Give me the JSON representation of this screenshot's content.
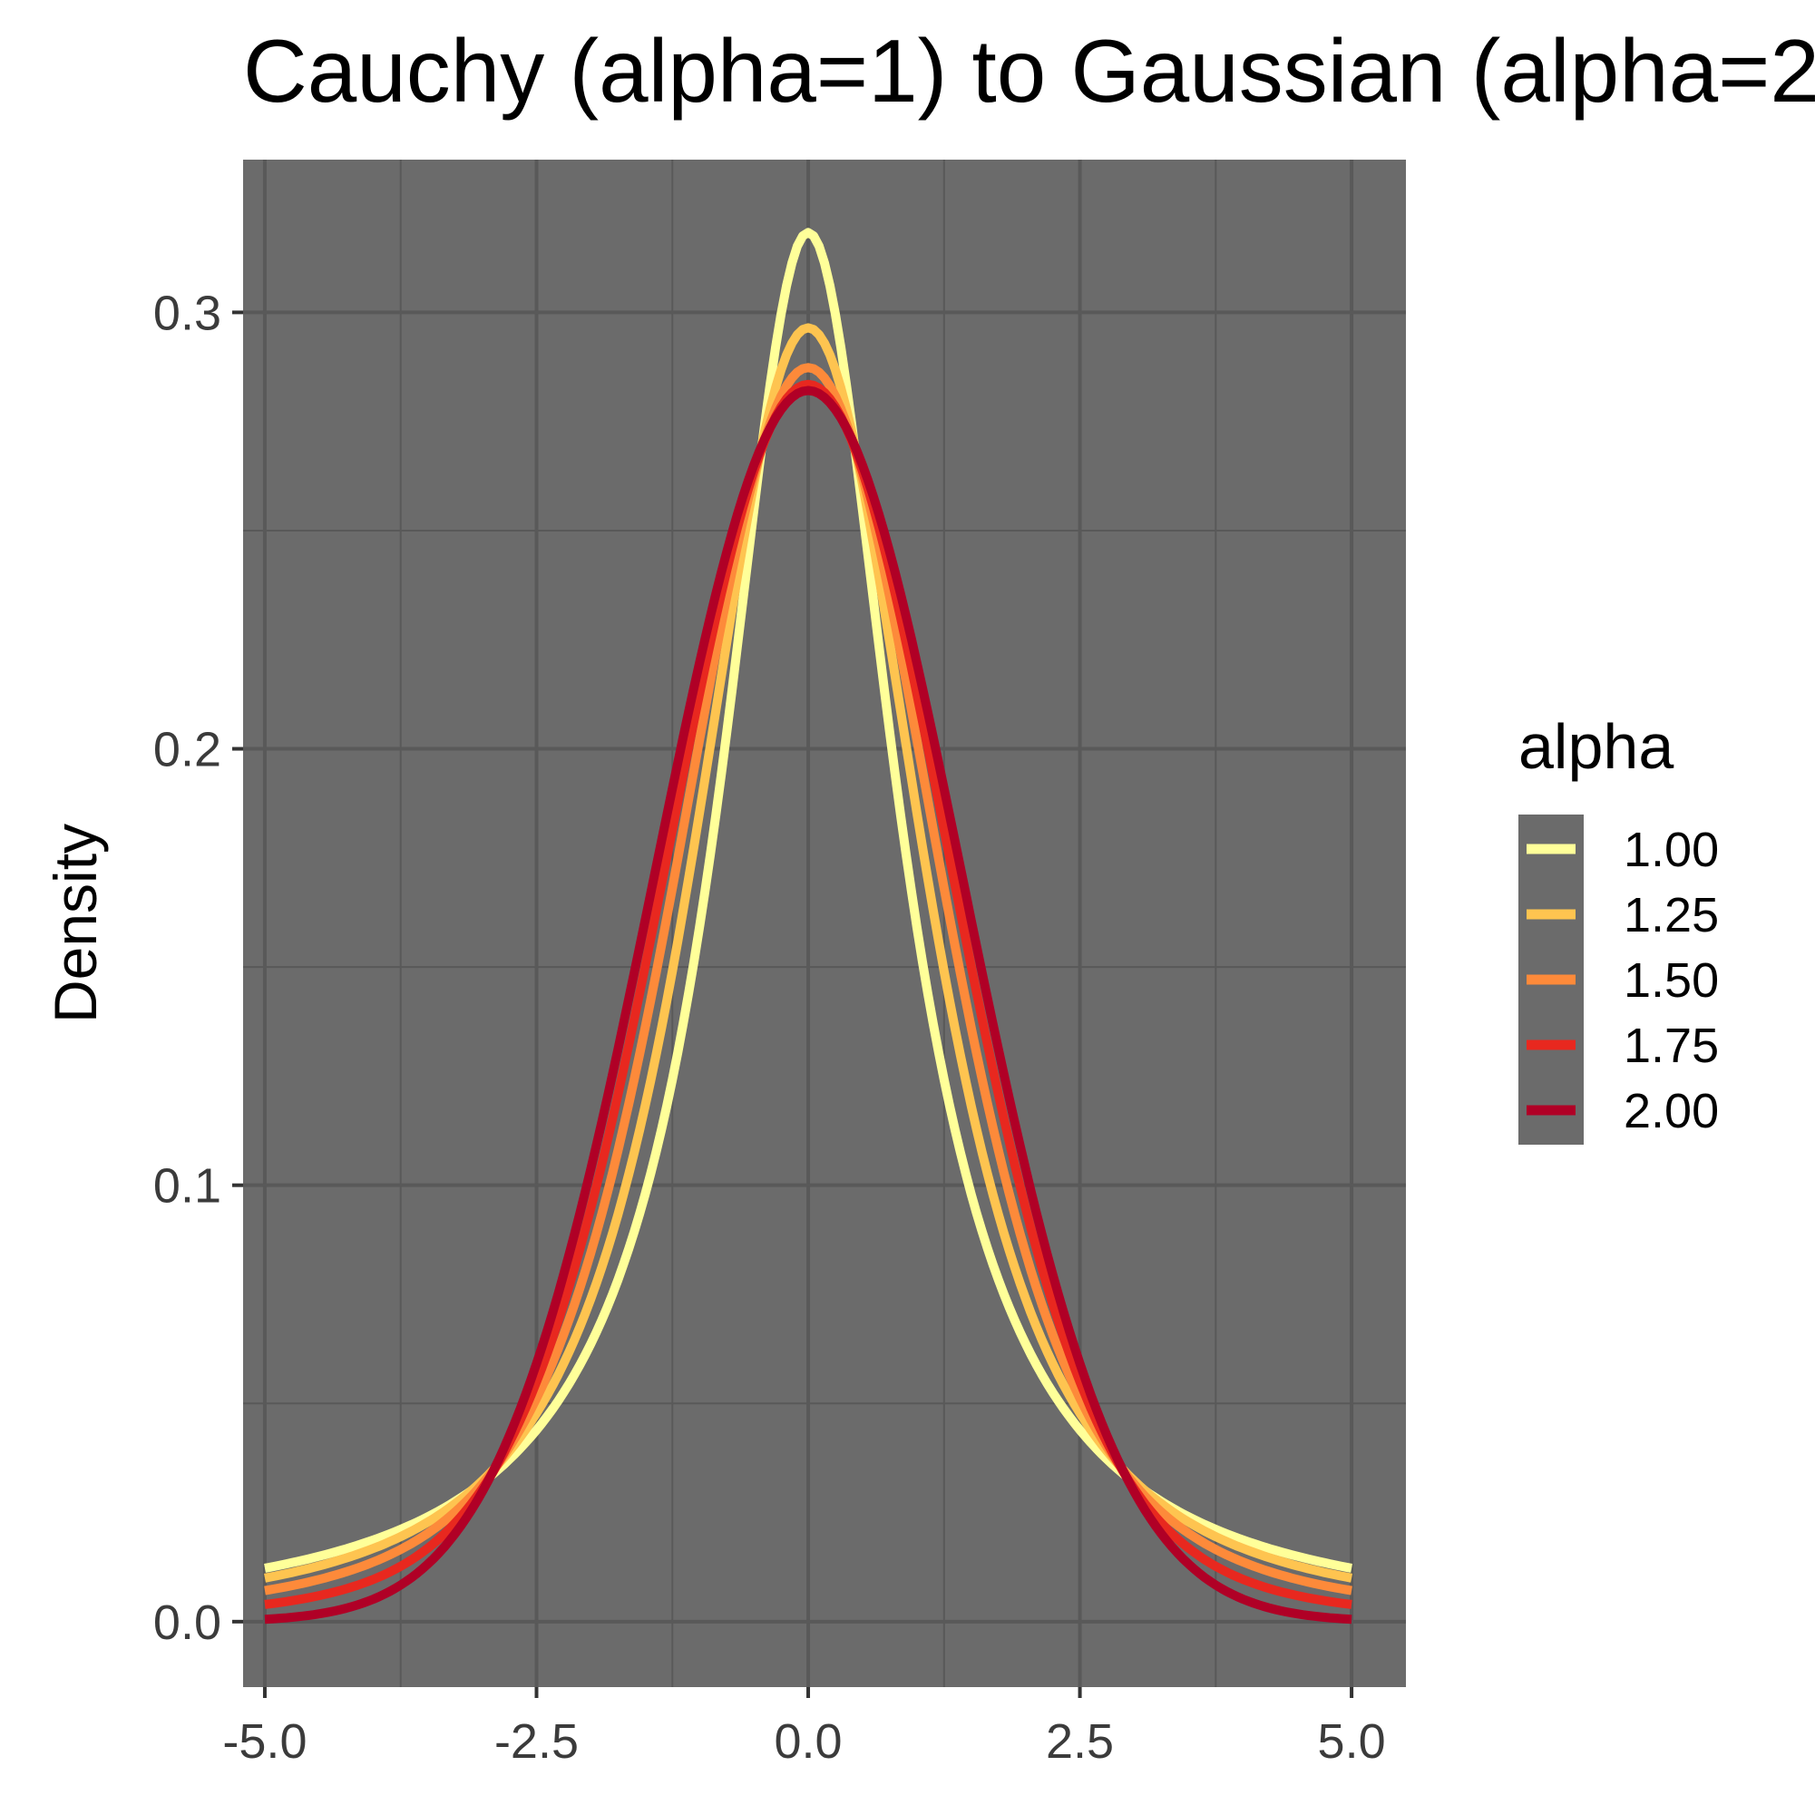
{
  "chart_data": {
    "type": "line",
    "title": "Cauchy (alpha=1) to Gaussian (alpha=2",
    "xlabel": "",
    "ylabel": "Density",
    "xlim": [
      -5.2,
      5.5
    ],
    "ylim": [
      -0.015,
      0.335
    ],
    "x_ticks": [
      "-5.0",
      "-2.5",
      "0.0",
      "2.5",
      "5.0"
    ],
    "x_tick_values": [
      -5,
      -2.5,
      0,
      2.5,
      5
    ],
    "y_ticks": [
      "0.0",
      "0.1",
      "0.2",
      "0.3"
    ],
    "y_tick_values": [
      0,
      0.1,
      0.2,
      0.3
    ],
    "grid": true,
    "panel_color": "#6b6b6b",
    "grid_color": "#595959",
    "legend": {
      "title": "alpha",
      "placement": "right"
    },
    "series": [
      {
        "name": "1.00",
        "alpha": 1.0,
        "color": "#FFFF99",
        "peak": 0.3183
      },
      {
        "name": "1.25",
        "alpha": 1.25,
        "color": "#FEC450",
        "peak": 0.296
      },
      {
        "name": "1.50",
        "alpha": 1.5,
        "color": "#FD8A3A",
        "peak": 0.287
      },
      {
        "name": "1.75",
        "alpha": 1.75,
        "color": "#E8281F",
        "peak": 0.283
      },
      {
        "name": "2.00",
        "alpha": 2.0,
        "color": "#B00026",
        "peak": 0.2821
      }
    ]
  }
}
